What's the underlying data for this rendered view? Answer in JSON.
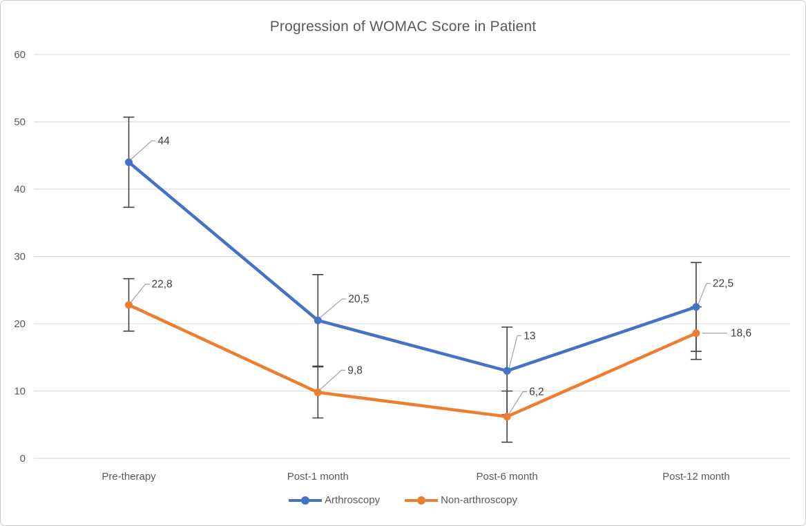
{
  "chart_data": {
    "type": "line",
    "title": "Progression of WOMAC Score in Patient",
    "xlabel": "",
    "ylabel": "",
    "categories": [
      "Pre-therapy",
      "Post-1 month",
      "Post-6 month",
      "Post-12 month"
    ],
    "series": [
      {
        "name": "Arthroscopy",
        "color": "#4472C4",
        "values": [
          44,
          20.5,
          13,
          22.5
        ],
        "error_bars": [
          6.7,
          6.8,
          6.5,
          6.6
        ],
        "data_labels": [
          "44",
          "20,5",
          "13",
          "22,5"
        ],
        "label_offsets": [
          {
            "dx": 42,
            "dy": -31
          },
          {
            "dx": 44,
            "dy": -31
          },
          {
            "dx": 24,
            "dy": -51
          },
          {
            "dx": 24,
            "dy": -34
          }
        ]
      },
      {
        "name": "Non-arthroscopy",
        "color": "#ED7D31",
        "values": [
          22.8,
          9.8,
          6.2,
          18.6
        ],
        "error_bars": [
          3.9,
          3.8,
          3.8,
          3.9
        ],
        "data_labels": [
          "22,8",
          "9,8",
          "6,2",
          "18,6"
        ],
        "label_offsets": [
          {
            "dx": 33,
            "dy": -30
          },
          {
            "dx": 43,
            "dy": -32
          },
          {
            "dx": 32,
            "dy": -36
          },
          {
            "dx": 50,
            "dy": 0
          }
        ]
      }
    ],
    "ylim": [
      0,
      60
    ],
    "yticks": [
      0,
      10,
      20,
      30,
      40,
      50,
      60
    ],
    "grid": true,
    "legend_position": "bottom",
    "colors": {
      "gridline": "#D9D9D9",
      "axis_text": "#595959",
      "title_text": "#595959",
      "data_label_text": "#404040",
      "error_bar": "#404040",
      "leader_line": "#A6A6A6",
      "border": "#CFCDCB",
      "background": "#FFFFFF"
    }
  }
}
